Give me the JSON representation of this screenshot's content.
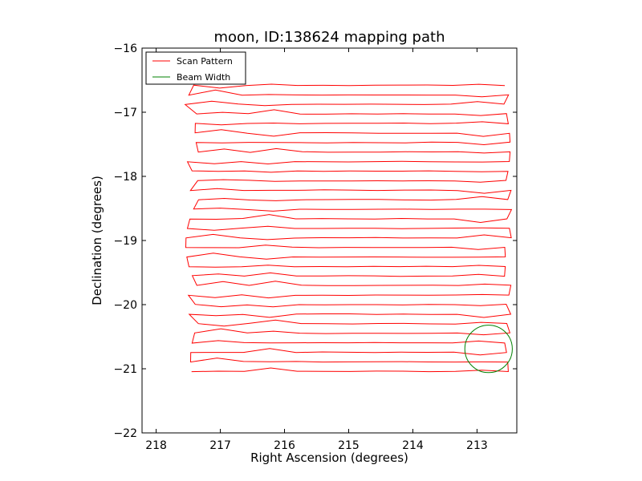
{
  "chart_data": {
    "type": "line",
    "title": "moon, ID:138624 mapping path",
    "xlabel": "Right Ascension (degrees)",
    "ylabel": "Declination (degrees)",
    "xlim": [
      218.22,
      212.38
    ],
    "ylim": [
      -22,
      -16
    ],
    "xticks": [
      218,
      217,
      216,
      215,
      214,
      213
    ],
    "yticks": [
      -16,
      -17,
      -18,
      -19,
      -20,
      -21,
      -22
    ],
    "xtick_labels": [
      "218",
      "217",
      "216",
      "215",
      "214",
      "213"
    ],
    "ytick_labels": [
      "−16",
      "−17",
      "−18",
      "−19",
      "−20",
      "−21",
      "−22"
    ],
    "grid": false,
    "legend": {
      "position": "top-left",
      "entries": [
        {
          "name": "Scan Pattern",
          "color": "#ff0000"
        },
        {
          "name": "Beam Width",
          "color": "#008000"
        }
      ]
    },
    "series": [
      {
        "name": "Scan Pattern",
        "color": "#ff0000",
        "kind": "boustrophedon",
        "ra_left": 217.45,
        "ra_right": 212.52,
        "dec_start": -21.04,
        "dec_end": -16.58,
        "num_lines": 31
      },
      {
        "name": "Beam Width",
        "color": "#008000",
        "kind": "circle",
        "center_ra": 212.82,
        "center_dec": -20.69,
        "radius_deg": 0.37
      }
    ]
  }
}
